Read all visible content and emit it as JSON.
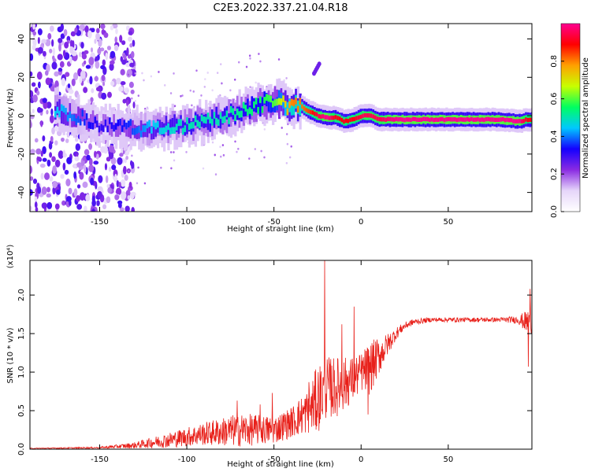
{
  "figure": {
    "title": "C2E3.2022.337.21.04.R18"
  },
  "chart_data": [
    {
      "type": "heatmap",
      "xlabel": "Height of straight line (km)",
      "ylabel": "Frequency (Hz)",
      "xlim": [
        -190,
        98
      ],
      "ylim": [
        -50,
        48
      ],
      "xticks": [
        -150,
        -100,
        -50,
        0,
        50
      ],
      "yticks": [
        -40,
        -20,
        0,
        20,
        40
      ],
      "colorbar": {
        "label": "Normalized spectral amplitude",
        "range": [
          0,
          1
        ],
        "ticks": [
          0.0,
          0.2,
          0.4,
          0.6,
          0.8
        ],
        "colormap": [
          "#ffffff",
          "#e6d6fa",
          "#8a2be2",
          "#1400ff",
          "#00c8ff",
          "#00ff60",
          "#c8ff00",
          "#ffa000",
          "#ff0000",
          "#ff0090"
        ]
      },
      "noise_region_x": [
        -190,
        -133
      ],
      "ridge": {
        "x": [
          -175,
          -150,
          -135,
          -120,
          -100,
          -80,
          -60,
          -50,
          -43,
          -40,
          -35,
          -30,
          -25,
          -20,
          -15,
          -10,
          -5,
          0,
          5,
          10,
          20,
          40,
          60,
          80,
          90,
          95
        ],
        "y": [
          3,
          -5,
          -6,
          -7,
          -5,
          -1,
          5,
          8,
          5,
          5,
          5,
          2,
          0,
          -1,
          -1,
          -3,
          -2,
          0,
          0,
          -2,
          -2,
          -2,
          -2,
          -2,
          -3,
          -2
        ],
        "amplitude": [
          0.45,
          0.3,
          0.35,
          0.45,
          0.5,
          0.5,
          0.55,
          0.6,
          0.75,
          0.8,
          0.8,
          0.85,
          0.95,
          1.0,
          0.9,
          0.9,
          0.9,
          0.95,
          0.95,
          0.95,
          1.0,
          1.0,
          1.0,
          1.0,
          1.0,
          0.9
        ]
      },
      "branch": {
        "x": [
          -27,
          -24
        ],
        "y": [
          22,
          27
        ]
      }
    },
    {
      "type": "line",
      "xlabel": "Height of straight line (km)",
      "ylabel": "SNR (10 * v/v)",
      "scale_label": "(x10⁴)",
      "xlim": [
        -190,
        98
      ],
      "ylim": [
        0,
        2.45
      ],
      "xticks": [
        -150,
        -100,
        -50,
        0,
        50
      ],
      "yticks": [
        0.0,
        0.5,
        1.0,
        1.5,
        2.0
      ],
      "color": "#e8201a",
      "envelope": {
        "x": [
          -190,
          -150,
          -130,
          -110,
          -90,
          -70,
          -50,
          -40,
          -30,
          -25,
          -20,
          -15,
          -10,
          -5,
          0,
          5,
          10,
          15,
          20,
          25,
          30,
          40,
          60,
          80,
          90,
          95,
          98
        ],
        "baseline": [
          0.01,
          0.02,
          0.05,
          0.12,
          0.2,
          0.25,
          0.25,
          0.35,
          0.5,
          0.65,
          0.8,
          0.8,
          0.85,
          0.9,
          1.0,
          1.05,
          1.2,
          1.35,
          1.5,
          1.6,
          1.65,
          1.68,
          1.68,
          1.68,
          1.68,
          1.65,
          1.7
        ],
        "amplitude": [
          0.005,
          0.01,
          0.04,
          0.1,
          0.15,
          0.22,
          0.18,
          0.2,
          0.3,
          0.45,
          0.4,
          0.4,
          0.35,
          0.3,
          0.25,
          0.35,
          0.25,
          0.15,
          0.08,
          0.05,
          0.04,
          0.03,
          0.03,
          0.03,
          0.05,
          0.15,
          0.2
        ]
      },
      "spikes": [
        {
          "x": -71,
          "y": 0.63
        },
        {
          "x": -58,
          "y": 0.58
        },
        {
          "x": -51,
          "y": 0.73
        },
        {
          "x": -30,
          "y": 0.87
        },
        {
          "x": -21,
          "y": 2.45
        },
        {
          "x": -11,
          "y": 1.62
        },
        {
          "x": -4,
          "y": 1.85
        },
        {
          "x": 4,
          "y": 0.45
        },
        {
          "x": 96,
          "y": 1.07
        },
        {
          "x": 97,
          "y": 2.08
        }
      ]
    }
  ]
}
